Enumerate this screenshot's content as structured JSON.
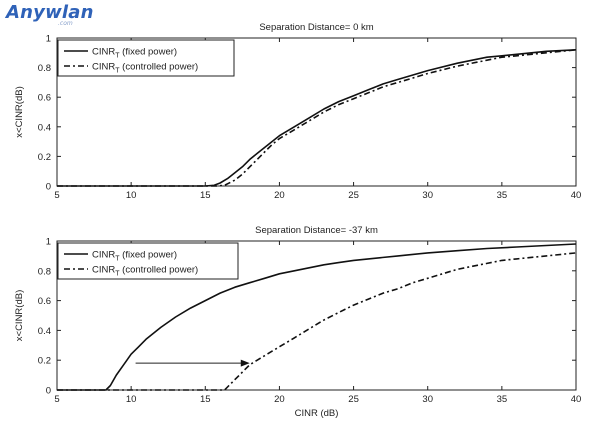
{
  "watermark": {
    "brand": "Anywlan",
    "sub": ".com"
  },
  "chart_data": [
    {
      "type": "line",
      "title": "Separation Distance= 0 km",
      "xlabel": "",
      "ylabel": "x<CINR(dB)",
      "xlim": [
        5,
        40
      ],
      "ylim": [
        0,
        1
      ],
      "xticks": [
        5,
        10,
        15,
        20,
        25,
        30,
        35,
        40
      ],
      "yticks": [
        0,
        0.2,
        0.4,
        0.6,
        0.8,
        1
      ],
      "legend_position": "top-left",
      "legend_prefix": "CINR",
      "legend_subscript": "T",
      "series": [
        {
          "name": "(fixed power)",
          "style": "solid",
          "x": [
            5,
            14,
            15,
            15.6,
            16,
            16.5,
            17,
            17.5,
            18,
            18.5,
            19,
            19.5,
            20,
            21,
            22,
            23,
            24,
            25,
            26,
            27,
            28,
            29,
            30,
            32,
            34,
            35,
            36,
            38,
            40
          ],
          "y": [
            0,
            0,
            0,
            0.005,
            0.02,
            0.05,
            0.09,
            0.13,
            0.18,
            0.22,
            0.26,
            0.3,
            0.34,
            0.4,
            0.46,
            0.52,
            0.57,
            0.61,
            0.65,
            0.69,
            0.72,
            0.75,
            0.78,
            0.83,
            0.87,
            0.88,
            0.89,
            0.91,
            0.92
          ]
        },
        {
          "name": "(controlled power)",
          "style": "dashed",
          "x": [
            5,
            15.8,
            16.3,
            17,
            17.5,
            18,
            18.5,
            19,
            19.5,
            20,
            21,
            22,
            23,
            24,
            25,
            26,
            27,
            28,
            29,
            30,
            32,
            34,
            35,
            36,
            38,
            40
          ],
          "y": [
            0,
            0,
            0.005,
            0.04,
            0.08,
            0.13,
            0.18,
            0.23,
            0.28,
            0.32,
            0.38,
            0.44,
            0.5,
            0.55,
            0.59,
            0.63,
            0.67,
            0.7,
            0.73,
            0.76,
            0.81,
            0.85,
            0.87,
            0.88,
            0.9,
            0.92
          ]
        }
      ]
    },
    {
      "type": "line",
      "title": "Separation Distance= -37 km",
      "xlabel": "CINR (dB)",
      "ylabel": "x<CINR(dB)",
      "xlim": [
        5,
        40
      ],
      "ylim": [
        0,
        1
      ],
      "xticks": [
        5,
        10,
        15,
        20,
        25,
        30,
        35,
        40
      ],
      "yticks": [
        0,
        0.2,
        0.4,
        0.6,
        0.8,
        1
      ],
      "legend_position": "top-left",
      "legend_prefix": "CINR",
      "legend_subscript": "T",
      "annotation": {
        "type": "arrow",
        "y": 0.18,
        "x_from": 10.3,
        "x_to": 18
      },
      "series": [
        {
          "name": "(fixed power)",
          "style": "solid",
          "x": [
            5,
            8.3,
            8.6,
            9,
            9.5,
            10,
            10.5,
            11,
            12,
            13,
            14,
            15,
            16,
            17,
            18,
            19,
            20,
            21,
            22,
            23,
            24,
            25,
            26,
            28,
            30,
            32,
            34,
            36,
            38,
            40
          ],
          "y": [
            0,
            0,
            0.03,
            0.1,
            0.17,
            0.24,
            0.29,
            0.34,
            0.42,
            0.49,
            0.55,
            0.6,
            0.65,
            0.69,
            0.72,
            0.75,
            0.78,
            0.8,
            0.82,
            0.84,
            0.855,
            0.87,
            0.88,
            0.9,
            0.92,
            0.935,
            0.95,
            0.96,
            0.97,
            0.98
          ]
        },
        {
          "name": "(controlled power)",
          "style": "dashed",
          "x": [
            5,
            16.3,
            16.6,
            17,
            17.5,
            18,
            18.5,
            19,
            20,
            21,
            22,
            23,
            24,
            25,
            26,
            27,
            28,
            29,
            30,
            31,
            32,
            33,
            34,
            35,
            36,
            38,
            40
          ],
          "y": [
            0,
            0,
            0.03,
            0.07,
            0.12,
            0.17,
            0.2,
            0.23,
            0.29,
            0.35,
            0.41,
            0.47,
            0.52,
            0.57,
            0.61,
            0.65,
            0.68,
            0.72,
            0.75,
            0.78,
            0.81,
            0.83,
            0.85,
            0.87,
            0.88,
            0.9,
            0.92
          ]
        }
      ]
    }
  ]
}
